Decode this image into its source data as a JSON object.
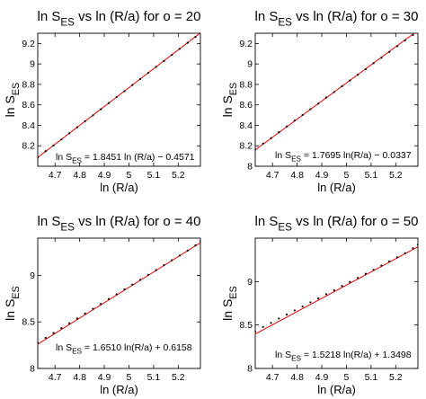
{
  "chart_data": [
    {
      "type": "scatter",
      "title": {
        "main": "ln S",
        "sub": "ES",
        "rest": " vs ln (R/a) for o = 20"
      },
      "xlabel": "ln (R/a)",
      "ylabel": {
        "main": "ln S",
        "sub": "ES"
      },
      "xlim": [
        4.63,
        5.29
      ],
      "ylim": [
        8.0,
        9.3
      ],
      "xticks": [
        "4.7",
        "4.8",
        "4.9",
        "5",
        "5.1",
        "5.2"
      ],
      "yticks": [
        "8.2",
        "8.4",
        "8.6",
        "8.8",
        "9",
        "9.2"
      ],
      "fit": {
        "slope": 1.8451,
        "intercept": -0.4571
      },
      "annotation": {
        "main": "ln S",
        "sub": "ES",
        "rest": " = 1.8451 ln (R/a) − 0.4571"
      },
      "series": [
        {
          "x": [
            4.63,
            4.662,
            4.694,
            4.726,
            4.758,
            4.79,
            4.822,
            4.854,
            4.886,
            4.918,
            4.95,
            4.982,
            5.014,
            5.046,
            5.078,
            5.11,
            5.142,
            5.174,
            5.206,
            5.238,
            5.27,
            5.29
          ],
          "y": [
            8.085,
            8.147,
            8.203,
            8.262,
            8.322,
            8.381,
            8.441,
            8.497,
            8.558,
            8.617,
            8.676,
            8.734,
            8.794,
            8.852,
            8.912,
            8.971,
            9.029,
            9.088,
            9.148,
            9.207,
            9.265,
            9.303
          ]
        }
      ],
      "colors": {
        "points": "#000000",
        "fit": "#e00000"
      }
    },
    {
      "type": "scatter",
      "title": {
        "main": "ln S",
        "sub": "ES",
        "rest": " vs ln (R/a) for o = 30"
      },
      "xlabel": "ln (R/a)",
      "ylabel": {
        "main": "ln S",
        "sub": "ES"
      },
      "xlim": [
        4.63,
        5.29
      ],
      "ylim": [
        8.0,
        9.3
      ],
      "xticks": [
        "4.7",
        "4.8",
        "4.9",
        "5",
        "5.1",
        "5.2"
      ],
      "yticks": [
        "8",
        "8.2",
        "8.4",
        "8.6",
        "8.8",
        "9",
        "9.2"
      ],
      "fit": {
        "slope": 1.7695,
        "intercept": -0.0337
      },
      "annotation": {
        "main": "ln S",
        "sub": "ES",
        "rest": " = 1.7695 ln(R/a) − 0.0337"
      },
      "series": [
        {
          "x": [
            4.63,
            4.662,
            4.694,
            4.726,
            4.758,
            4.79,
            4.822,
            4.854,
            4.886,
            4.918,
            4.95,
            4.982,
            5.014,
            5.046,
            5.078,
            5.11,
            5.142,
            5.174,
            5.206,
            5.238,
            5.27,
            5.29
          ],
          "y": [
            8.164,
            8.222,
            8.275,
            8.333,
            8.389,
            8.447,
            8.501,
            8.558,
            8.612,
            8.671,
            8.725,
            8.782,
            8.838,
            8.894,
            8.949,
            9.007,
            9.061,
            9.118,
            9.174,
            9.231,
            9.284,
            9.323
          ]
        }
      ],
      "colors": {
        "points": "#000000",
        "fit": "#e00000"
      }
    },
    {
      "type": "scatter",
      "title": {
        "main": "ln S",
        "sub": "ES",
        "rest": " vs ln (R/a) for o = 40"
      },
      "xlabel": "ln (R/a)",
      "ylabel": {
        "main": "ln S",
        "sub": "ES"
      },
      "xlim": [
        4.63,
        5.29
      ],
      "ylim": [
        8.0,
        9.4
      ],
      "xticks": [
        "4.7",
        "4.8",
        "4.9",
        "5",
        "5.1",
        "5.2"
      ],
      "yticks": [
        "8",
        "8.5",
        "9"
      ],
      "fit": {
        "slope": 1.651,
        "intercept": 0.6158
      },
      "annotation": {
        "main": "ln S",
        "sub": "ES",
        "rest": " = 1.6510 ln(R/a) + 0.6158"
      },
      "series": [
        {
          "x": [
            4.63,
            4.662,
            4.694,
            4.726,
            4.758,
            4.79,
            4.822,
            4.854,
            4.886,
            4.918,
            4.95,
            4.982,
            5.014,
            5.046,
            5.078,
            5.11,
            5.142,
            5.174,
            5.206,
            5.238,
            5.27,
            5.29
          ],
          "y": [
            8.275,
            8.329,
            8.38,
            8.433,
            8.485,
            8.537,
            8.59,
            8.641,
            8.693,
            8.746,
            8.797,
            8.849,
            8.901,
            8.952,
            9.005,
            9.057,
            9.109,
            9.162,
            9.213,
            9.266,
            9.323,
            9.366
          ]
        }
      ],
      "colors": {
        "points": "#000000",
        "fit": "#e00000"
      }
    },
    {
      "type": "scatter",
      "title": {
        "main": "ln S",
        "sub": "ES",
        "rest": " vs ln (R/a) for o = 50"
      },
      "xlabel": "ln (R/a)",
      "ylabel": {
        "main": "ln S",
        "sub": "ES"
      },
      "xlim": [
        4.63,
        5.29
      ],
      "ylim": [
        8.0,
        9.5
      ],
      "xticks": [
        "4.7",
        "4.8",
        "4.9",
        "5",
        "5.1",
        "5.2"
      ],
      "yticks": [
        "8",
        "8.5",
        "9"
      ],
      "fit": {
        "slope": 1.5218,
        "intercept": 1.3498
      },
      "annotation": {
        "main": "ln S",
        "sub": "ES",
        "rest": " = 1.5218 ln(R/a) + 1.3498"
      },
      "series": [
        {
          "x": [
            4.63,
            4.662,
            4.694,
            4.726,
            4.758,
            4.79,
            4.822,
            4.854,
            4.886,
            4.918,
            4.95,
            4.982,
            5.014,
            5.046,
            5.078,
            5.11,
            5.142,
            5.174,
            5.206,
            5.238,
            5.27,
            5.29
          ],
          "y": [
            8.425,
            8.478,
            8.525,
            8.575,
            8.621,
            8.668,
            8.713,
            8.761,
            8.806,
            8.855,
            8.9,
            8.949,
            8.996,
            9.043,
            9.09,
            9.136,
            9.183,
            9.232,
            9.279,
            9.327,
            9.383,
            9.425
          ]
        }
      ],
      "colors": {
        "points": "#000000",
        "fit": "#e00000"
      }
    }
  ]
}
